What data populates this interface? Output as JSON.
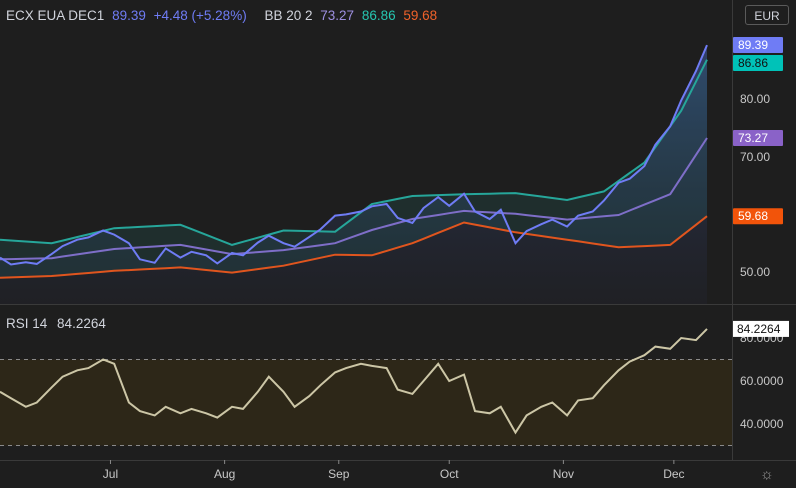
{
  "legend": {
    "symbol": "ECX EUA DEC1",
    "last": "89.39",
    "change": "+4.48 (+5.28%)",
    "bb_name": "BB 20 2",
    "bb_basis": "73.27",
    "bb_upper": "86.86",
    "bb_lower": "59.68"
  },
  "rsi_legend": {
    "name": "RSI 14",
    "value": "84.2264"
  },
  "currency": "EUR",
  "colors": {
    "price": "#6f7cf5",
    "upper": "#26a69a",
    "basis": "#7e6ec8",
    "lower": "#e0551e",
    "rsi": "#ccc6a6",
    "rsi_band": "#2d2718",
    "background": "#1e1e1e"
  },
  "chart_data": [
    {
      "type": "line",
      "title": "ECX EUA DEC1",
      "x_range": [
        "2021-06-01",
        "2021-12-10"
      ],
      "x_ticks": [
        "Jul",
        "Aug",
        "Sep",
        "Oct",
        "Nov",
        "Dec"
      ],
      "y_ticks": [
        "50.00",
        "60.00",
        "70.00",
        "80.00"
      ],
      "ylim": [
        44,
        100
      ],
      "grid": false,
      "series": [
        {
          "name": "ECX EUA DEC1",
          "values": [
            [
              "2021-06-01",
              52.5
            ],
            [
              "2021-06-04",
              51.3
            ],
            [
              "2021-06-08",
              51.7
            ],
            [
              "2021-06-11",
              51.4
            ],
            [
              "2021-06-15",
              53.1
            ],
            [
              "2021-06-18",
              54.5
            ],
            [
              "2021-06-22",
              55.6
            ],
            [
              "2021-06-25",
              56.0
            ],
            [
              "2021-06-29",
              57.2
            ],
            [
              "2021-07-02",
              56.5
            ],
            [
              "2021-07-06",
              55.0
            ],
            [
              "2021-07-09",
              52.2
            ],
            [
              "2021-07-13",
              51.6
            ],
            [
              "2021-07-16",
              54.1
            ],
            [
              "2021-07-20",
              52.5
            ],
            [
              "2021-07-23",
              53.5
            ],
            [
              "2021-07-27",
              52.9
            ],
            [
              "2021-07-30",
              51.5
            ],
            [
              "2021-08-03",
              53.3
            ],
            [
              "2021-08-06",
              52.9
            ],
            [
              "2021-08-10",
              55.1
            ],
            [
              "2021-08-13",
              56.3
            ],
            [
              "2021-08-17",
              55.0
            ],
            [
              "2021-08-20",
              54.4
            ],
            [
              "2021-08-24",
              56.1
            ],
            [
              "2021-08-27",
              57.4
            ],
            [
              "2021-08-31",
              59.8
            ],
            [
              "2021-09-03",
              60.0
            ],
            [
              "2021-09-07",
              60.5
            ],
            [
              "2021-09-10",
              61.4
            ],
            [
              "2021-09-14",
              61.8
            ],
            [
              "2021-09-17",
              59.4
            ],
            [
              "2021-09-21",
              58.5
            ],
            [
              "2021-09-24",
              61.1
            ],
            [
              "2021-09-28",
              63.0
            ],
            [
              "2021-10-01",
              61.5
            ],
            [
              "2021-10-05",
              63.6
            ],
            [
              "2021-10-08",
              60.5
            ],
            [
              "2021-10-12",
              59.2
            ],
            [
              "2021-10-15",
              60.8
            ],
            [
              "2021-10-19",
              55.0
            ],
            [
              "2021-10-22",
              57.1
            ],
            [
              "2021-10-26",
              58.3
            ],
            [
              "2021-10-29",
              59.1
            ],
            [
              "2021-11-02",
              57.9
            ],
            [
              "2021-11-05",
              59.8
            ],
            [
              "2021-11-09",
              60.5
            ],
            [
              "2021-11-12",
              62.4
            ],
            [
              "2021-11-16",
              65.5
            ],
            [
              "2021-11-19",
              66.2
            ],
            [
              "2021-11-23",
              68.4
            ],
            [
              "2021-11-26",
              72.1
            ],
            [
              "2021-11-30",
              75.3
            ],
            [
              "2021-12-03",
              79.8
            ],
            [
              "2021-12-07",
              84.9
            ],
            [
              "2021-12-10",
              89.39
            ]
          ]
        },
        {
          "name": "BB upper",
          "values": [
            [
              "2021-06-01",
              55.6
            ],
            [
              "2021-06-15",
              55.0
            ],
            [
              "2021-07-02",
              57.6
            ],
            [
              "2021-07-20",
              58.2
            ],
            [
              "2021-08-03",
              54.7
            ],
            [
              "2021-08-17",
              57.2
            ],
            [
              "2021-08-31",
              57.0
            ],
            [
              "2021-09-10",
              61.8
            ],
            [
              "2021-09-21",
              63.2
            ],
            [
              "2021-10-05",
              63.5
            ],
            [
              "2021-10-19",
              63.7
            ],
            [
              "2021-11-02",
              62.5
            ],
            [
              "2021-11-12",
              64.0
            ],
            [
              "2021-11-23",
              69.0
            ],
            [
              "2021-12-03",
              78.0
            ],
            [
              "2021-12-10",
              86.86
            ]
          ]
        },
        {
          "name": "BB basis",
          "values": [
            [
              "2021-06-01",
              52.2
            ],
            [
              "2021-06-15",
              52.4
            ],
            [
              "2021-07-02",
              54.0
            ],
            [
              "2021-07-20",
              54.7
            ],
            [
              "2021-08-03",
              53.1
            ],
            [
              "2021-08-17",
              53.8
            ],
            [
              "2021-08-31",
              55.0
            ],
            [
              "2021-09-10",
              57.3
            ],
            [
              "2021-09-21",
              59.2
            ],
            [
              "2021-10-05",
              60.6
            ],
            [
              "2021-10-19",
              60.1
            ],
            [
              "2021-11-02",
              59.1
            ],
            [
              "2021-11-16",
              59.9
            ],
            [
              "2021-11-30",
              63.5
            ],
            [
              "2021-12-10",
              73.27
            ]
          ]
        },
        {
          "name": "BB lower",
          "values": [
            [
              "2021-06-01",
              49.0
            ],
            [
              "2021-06-15",
              49.3
            ],
            [
              "2021-07-02",
              50.2
            ],
            [
              "2021-07-20",
              50.8
            ],
            [
              "2021-08-03",
              49.9
            ],
            [
              "2021-08-17",
              51.1
            ],
            [
              "2021-08-31",
              53.0
            ],
            [
              "2021-09-10",
              52.9
            ],
            [
              "2021-09-21",
              55.0
            ],
            [
              "2021-10-05",
              58.6
            ],
            [
              "2021-10-19",
              56.9
            ],
            [
              "2021-11-02",
              55.6
            ],
            [
              "2021-11-16",
              54.3
            ],
            [
              "2021-11-30",
              54.7
            ],
            [
              "2021-12-10",
              59.68
            ]
          ]
        }
      ]
    },
    {
      "type": "line",
      "title": "RSI 14",
      "x_range": [
        "2021-06-01",
        "2021-12-10"
      ],
      "y_ticks": [
        "40.0000",
        "60.0000",
        "80.0000"
      ],
      "ylim": [
        28,
        90
      ],
      "band": [
        30,
        70
      ],
      "series": [
        {
          "name": "RSI 14",
          "values": [
            [
              "2021-06-01",
              55
            ],
            [
              "2021-06-04",
              52
            ],
            [
              "2021-06-08",
              48
            ],
            [
              "2021-06-11",
              50
            ],
            [
              "2021-06-15",
              57
            ],
            [
              "2021-06-18",
              62
            ],
            [
              "2021-06-22",
              65
            ],
            [
              "2021-06-25",
              66
            ],
            [
              "2021-06-29",
              70
            ],
            [
              "2021-07-02",
              68
            ],
            [
              "2021-07-06",
              50
            ],
            [
              "2021-07-09",
              46
            ],
            [
              "2021-07-13",
              44
            ],
            [
              "2021-07-16",
              48
            ],
            [
              "2021-07-20",
              45
            ],
            [
              "2021-07-23",
              47
            ],
            [
              "2021-07-27",
              45
            ],
            [
              "2021-07-30",
              43
            ],
            [
              "2021-08-03",
              48
            ],
            [
              "2021-08-06",
              47
            ],
            [
              "2021-08-10",
              55
            ],
            [
              "2021-08-13",
              62
            ],
            [
              "2021-08-17",
              55
            ],
            [
              "2021-08-20",
              48
            ],
            [
              "2021-08-24",
              53
            ],
            [
              "2021-08-27",
              58
            ],
            [
              "2021-08-31",
              64
            ],
            [
              "2021-09-03",
              66
            ],
            [
              "2021-09-07",
              68
            ],
            [
              "2021-09-10",
              67
            ],
            [
              "2021-09-14",
              66
            ],
            [
              "2021-09-17",
              56
            ],
            [
              "2021-09-21",
              54
            ],
            [
              "2021-09-24",
              60
            ],
            [
              "2021-09-28",
              68
            ],
            [
              "2021-10-01",
              60
            ],
            [
              "2021-10-05",
              63
            ],
            [
              "2021-10-08",
              46
            ],
            [
              "2021-10-12",
              45
            ],
            [
              "2021-10-15",
              48
            ],
            [
              "2021-10-19",
              36
            ],
            [
              "2021-10-22",
              44
            ],
            [
              "2021-10-26",
              48
            ],
            [
              "2021-10-29",
              50
            ],
            [
              "2021-11-02",
              44
            ],
            [
              "2021-11-05",
              51
            ],
            [
              "2021-11-09",
              52
            ],
            [
              "2021-11-12",
              58
            ],
            [
              "2021-11-16",
              65
            ],
            [
              "2021-11-19",
              69
            ],
            [
              "2021-11-23",
              72
            ],
            [
              "2021-11-26",
              76
            ],
            [
              "2021-11-30",
              75
            ],
            [
              "2021-12-03",
              80
            ],
            [
              "2021-12-07",
              79
            ],
            [
              "2021-12-10",
              84.2264
            ]
          ]
        }
      ]
    }
  ]
}
